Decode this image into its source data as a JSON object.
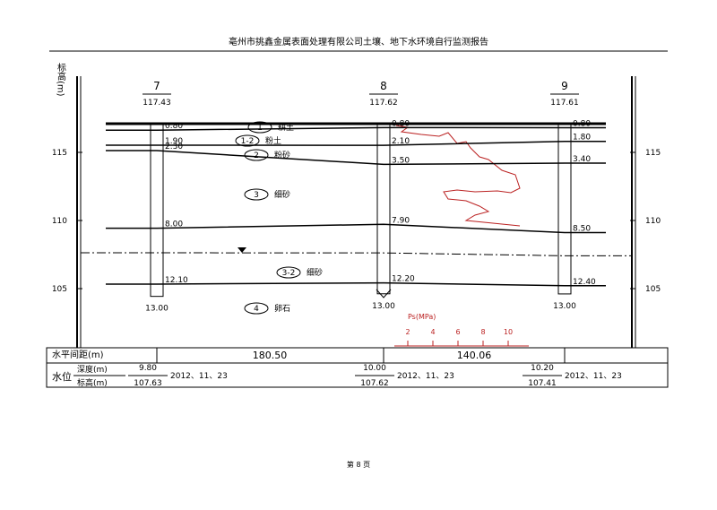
{
  "header": {
    "title": "亳州市挑鑫金属表面处理有限公司土壤、地下水环境自行监测报告"
  },
  "axis": {
    "label": "标高(m)",
    "ticks": [
      "115",
      "110",
      "105"
    ]
  },
  "boreholes": [
    {
      "id": "7",
      "elevation": "117.43",
      "depths": [
        "0.80",
        "1.90",
        "2.30",
        "8.00",
        "12.10"
      ],
      "bottom": "13.00",
      "water_depth": "9.80",
      "water_elevation": "107.63",
      "date": "2012、11、23"
    },
    {
      "id": "8",
      "elevation": "117.62",
      "depths": [
        "0.80",
        "2.10",
        "3.50",
        "7.90",
        "12.20"
      ],
      "bottom": "13.00",
      "water_depth": "10.00",
      "water_elevation": "107.62",
      "date": "2012、11、23"
    },
    {
      "id": "9",
      "elevation": "117.61",
      "depths": [
        "0.80",
        "1.80",
        "3.40",
        "8.50",
        "12.40"
      ],
      "bottom": "13.00",
      "water_depth": "10.20",
      "water_elevation": "107.41",
      "date": "2012、11、23"
    }
  ],
  "layers": [
    {
      "code": "1",
      "name": "耕土"
    },
    {
      "code": "1-2",
      "name": "粉土"
    },
    {
      "code": "2",
      "name": "粉砂"
    },
    {
      "code": "3",
      "name": "细砂"
    },
    {
      "code": "3-2",
      "name": "细砂"
    },
    {
      "code": "4",
      "name": "卵石"
    }
  ],
  "ps_scale": {
    "label": "Ps(MPa)",
    "ticks": [
      "2",
      "4",
      "6",
      "8",
      "10"
    ]
  },
  "table": {
    "spacing_label": "水平间距(m)",
    "spacings": [
      "180.50",
      "140.06"
    ],
    "water_label": "水位",
    "depth_label": "深度(m)",
    "elevation_label": "标高(m)"
  },
  "footer": "第 8 页"
}
